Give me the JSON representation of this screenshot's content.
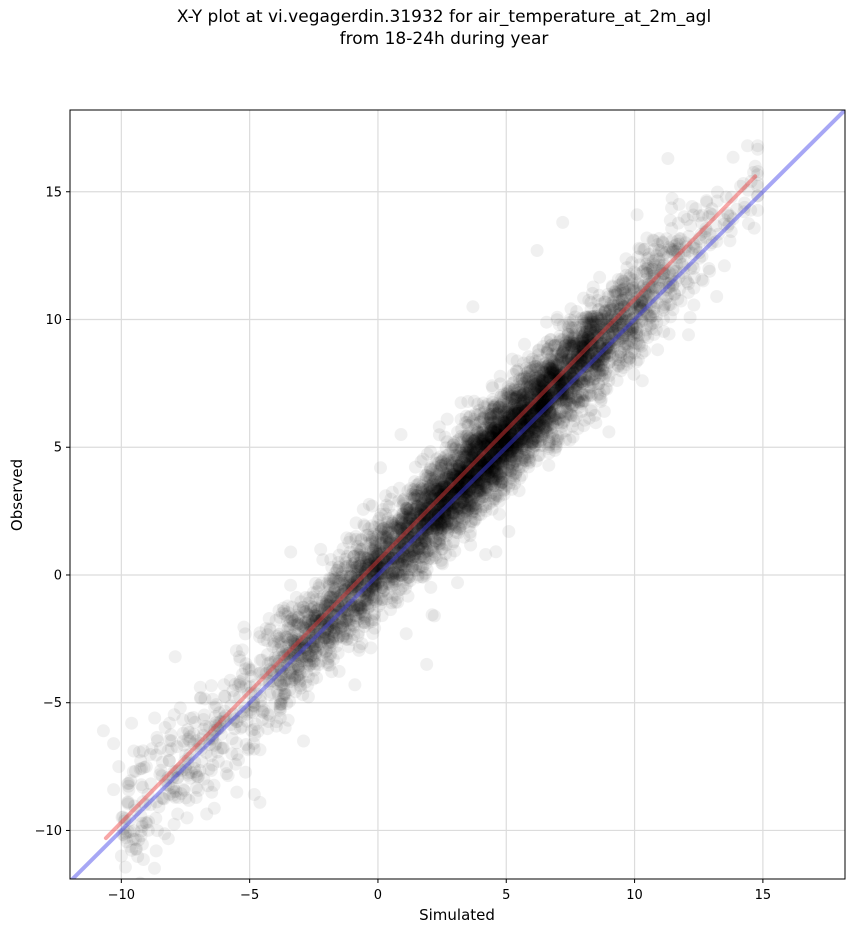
{
  "chart_data": {
    "type": "scatter",
    "title_line1": "X-Y plot at vi.vegagerdin.31932 for air_temperature_at_2m_agl",
    "title_line2": "from 18-24h during year",
    "xlabel": "Simulated",
    "ylabel": "Observed",
    "xlim": [
      -12,
      18.2
    ],
    "ylim": [
      -11.9,
      18.2
    ],
    "xticks": [
      -10,
      -5,
      0,
      5,
      10,
      15
    ],
    "yticks": [
      -10,
      -5,
      0,
      5,
      10,
      15
    ],
    "xtick_labels": [
      "−10",
      "−5",
      "0",
      "5",
      "10",
      "15"
    ],
    "ytick_labels": [
      "−10",
      "−5",
      "0",
      "5",
      "10",
      "15"
    ],
    "grid": true,
    "point_color": "#000000",
    "point_opacity": 0.06,
    "point_count_approx": 6000,
    "points_sample": [
      [
        -10.7,
        -6.1
      ],
      [
        -10.3,
        -6.6
      ],
      [
        -10.1,
        -7.5
      ],
      [
        -10.3,
        -8.4
      ],
      [
        -9.6,
        -5.8
      ],
      [
        -8.8,
        -6.8
      ],
      [
        -8.7,
        -5.6
      ],
      [
        -7.7,
        -5.2
      ],
      [
        -7.9,
        -3.2
      ],
      [
        -6.9,
        -4.8
      ],
      [
        -6.0,
        -4.3
      ],
      [
        -5.9,
        -7.5
      ],
      [
        -5.5,
        -8.5
      ],
      [
        -4.6,
        -8.9
      ],
      [
        -5.4,
        -3.2
      ],
      [
        -4.1,
        -2.8
      ],
      [
        -3.4,
        0.9
      ],
      [
        -2.3,
        -0.5
      ],
      [
        -2.9,
        -6.5
      ],
      [
        -0.9,
        -4.3
      ],
      [
        -0.5,
        -1.7
      ],
      [
        0.1,
        4.2
      ],
      [
        0.9,
        5.5
      ],
      [
        1.2,
        2.3
      ],
      [
        3.7,
        10.5
      ],
      [
        6.2,
        12.7
      ],
      [
        7.2,
        13.8
      ],
      [
        10.1,
        14.1
      ],
      [
        11.3,
        16.3
      ],
      [
        14.4,
        16.8
      ],
      [
        14.7,
        16.0
      ],
      [
        13.5,
        12.1
      ],
      [
        13.2,
        10.9
      ],
      [
        12.1,
        9.4
      ],
      [
        11.4,
        10.1
      ],
      [
        10.3,
        7.6
      ],
      [
        9.0,
        5.6
      ],
      [
        7.6,
        5.4
      ],
      [
        5.5,
        3.3
      ],
      [
        5.1,
        1.7
      ],
      [
        4.2,
        0.8
      ],
      [
        3.1,
        -0.3
      ],
      [
        2.2,
        -1.6
      ],
      [
        1.9,
        -3.5
      ],
      [
        1.1,
        -2.3
      ]
    ],
    "lines": [
      {
        "color": "#f03c3c",
        "opacity": 0.45,
        "x": [
          -10.6,
          14.7
        ],
        "y": [
          -10.3,
          15.6
        ]
      },
      {
        "color": "#3b3be8",
        "opacity": 0.45,
        "x": [
          -12,
          18.2
        ],
        "y": [
          -12,
          18.2
        ]
      }
    ]
  }
}
